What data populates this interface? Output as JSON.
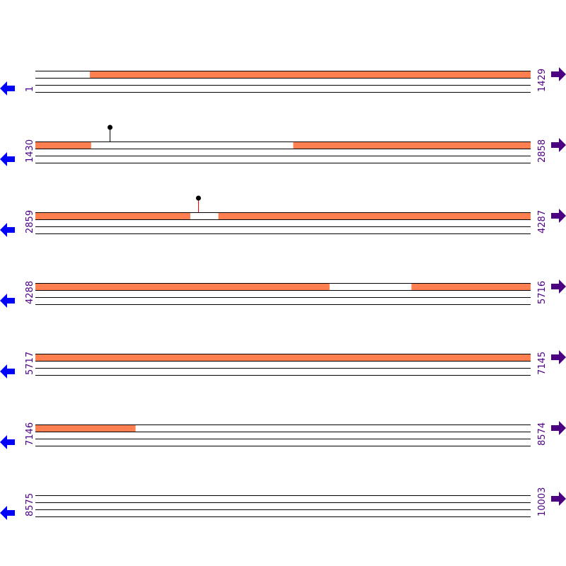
{
  "sequence_length": 10003,
  "bases_per_row": 1429,
  "rows": [
    {
      "start": "1",
      "end": "1429"
    },
    {
      "start": "1430",
      "end": "2858"
    },
    {
      "start": "2859",
      "end": "4287"
    },
    {
      "start": "4288",
      "end": "5716"
    },
    {
      "start": "5717",
      "end": "7145"
    },
    {
      "start": "7146",
      "end": "8574"
    },
    {
      "start": "8575",
      "end": "10003"
    }
  ],
  "features": [
    [
      158,
      1590
    ],
    [
      2174,
      3305
    ],
    [
      3387,
      5136
    ],
    [
      5373,
      7434
    ]
  ],
  "markers": [
    1644,
    3329
  ],
  "colors": {
    "feature": "#ff7f50",
    "reverse_arrow": "#0000ff",
    "forward_arrow": "#4b0082",
    "label": "#4b0082",
    "marker_stem": "#ff0000",
    "marker_head": "#000000"
  },
  "icons": {
    "left": "arrow-left-icon",
    "right": "arrow-right-icon"
  }
}
